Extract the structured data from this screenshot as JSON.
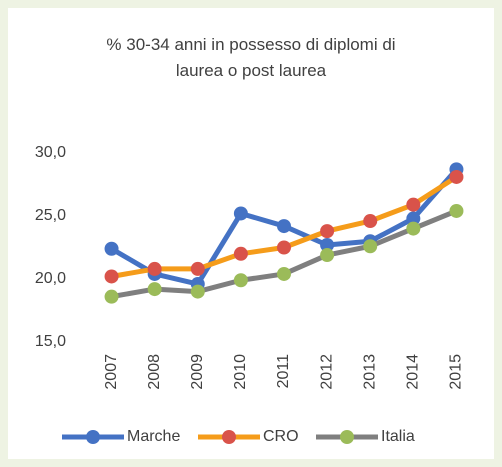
{
  "chart_data": {
    "type": "line",
    "title": "% 30-34 anni in possesso di diplomi di laurea o post laurea",
    "categories": [
      "2007",
      "2008",
      "2009",
      "2010",
      "2011",
      "2012",
      "2013",
      "2014",
      "2015"
    ],
    "series": [
      {
        "name": "Marche",
        "color": "#4472c4",
        "marker_color": "#4472c4",
        "values": [
          22.4,
          20.4,
          19.6,
          25.2,
          24.2,
          22.7,
          23.0,
          24.8,
          28.7
        ]
      },
      {
        "name": "CRO",
        "color": "#f59c1a",
        "marker_color": "#d9534a",
        "values": [
          20.2,
          20.8,
          20.8,
          22.0,
          22.5,
          23.8,
          24.6,
          25.9,
          28.1
        ]
      },
      {
        "name": "Italia",
        "color": "#7f7f7f",
        "marker_color": "#9bbb59",
        "values": [
          18.6,
          19.2,
          19.0,
          19.9,
          20.4,
          21.9,
          22.6,
          24.0,
          25.4
        ]
      }
    ],
    "ylim": [
      15,
      30
    ],
    "yticks": [
      {
        "value": 15,
        "label": "15,0"
      },
      {
        "value": 20,
        "label": "20,0"
      },
      {
        "value": 25,
        "label": "25,0"
      },
      {
        "value": 30,
        "label": "30,0"
      }
    ],
    "grid": false,
    "legend": "bottom"
  }
}
